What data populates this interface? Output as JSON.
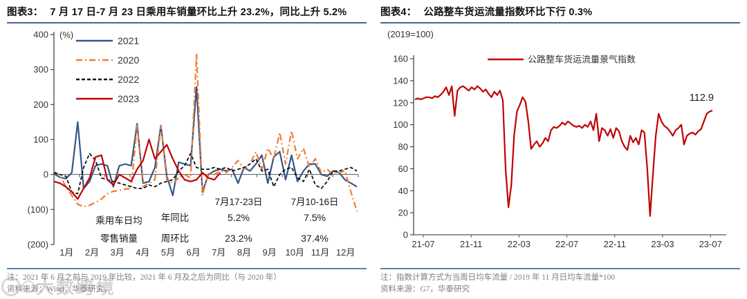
{
  "watermark": {
    "text": "大数跨境"
  },
  "panels": {
    "left": {
      "title_prefix": "图表3：",
      "title": "7 月 17 日-7 月 23 日乘用车销量环比上升 23.2%，同比上升 5.2%",
      "note1": "注：2021 年 6 月之前与 2019 年比较，2021 年 6 月及之后为同比（与 2020 年）",
      "note2": "资料来源：Wind，华泰研究。"
    },
    "right": {
      "title_prefix": "图表4：",
      "title": "公路整车货运流量指数环比下行 0.3%",
      "note1": "注：指数计算方式为当周日均车流量 / 2019 年 11 月日均车流量*100",
      "note2": "资料来源：G7，华泰研究"
    }
  },
  "chart_data": [
    {
      "type": "line",
      "title": "7 月 17 日-7 月 23 日乘用车销量环比上升 23.2%，同比上升 5.2%",
      "ylabel": "(%)",
      "ylim": [
        -200,
        400
      ],
      "yticks": [
        400,
        300,
        200,
        100,
        0,
        -100,
        -200
      ],
      "ytick_labels": [
        "400",
        "300",
        "200",
        "100",
        "0",
        "(100)",
        "(200)"
      ],
      "categories": [
        "1月",
        "2月",
        "3月",
        "4月",
        "5月",
        "6月",
        "7月",
        "8月",
        "9月",
        "10月",
        "11月",
        "12月"
      ],
      "x_unit": "week-of-year",
      "legend_position": "top-left",
      "grid": false,
      "series": [
        {
          "name": "2021",
          "color": "#34558b",
          "style": "solid",
          "values": [
            2,
            -8,
            -12,
            5,
            150,
            -40,
            -20,
            25,
            30,
            25,
            -35,
            25,
            30,
            25,
            145,
            -25,
            -20,
            20,
            140,
            -5,
            -60,
            35,
            30,
            25,
            250,
            -50,
            0,
            10,
            15,
            10,
            15,
            -25,
            20,
            10,
            30,
            55,
            -25,
            50,
            65,
            -15,
            55,
            -20,
            10,
            30,
            30,
            0,
            -5,
            10,
            5,
            -15,
            -25,
            -35
          ]
        },
        {
          "name": "2020",
          "color": "#ed7d31",
          "style": "dash-dot",
          "values": [
            8,
            -2,
            -35,
            -60,
            -85,
            -92,
            -88,
            -80,
            -70,
            -55,
            -48,
            -45,
            -42,
            -40,
            140,
            -35,
            -25,
            -15,
            138,
            -15,
            -25,
            -10,
            0,
            -10,
            345,
            -60,
            5,
            0,
            10,
            5,
            20,
            40,
            15,
            30,
            65,
            15,
            75,
            45,
            120,
            30,
            125,
            45,
            75,
            20,
            45,
            5,
            15,
            0,
            5,
            10,
            -50,
            -105
          ]
        },
        {
          "name": "2022",
          "color": "#111111",
          "style": "dashed",
          "values": [
            5,
            0,
            -5,
            -50,
            -55,
            20,
            60,
            40,
            -10,
            -15,
            -20,
            -25,
            -30,
            -35,
            -40,
            -40,
            -30,
            -35,
            -25,
            -20,
            -15,
            10,
            25,
            60,
            20,
            15,
            15,
            20,
            15,
            20,
            10,
            15,
            20,
            30,
            45,
            10,
            15,
            -35,
            0,
            15,
            20,
            -10,
            -20,
            15,
            -30,
            -40,
            -20,
            10,
            10,
            15,
            20,
            10
          ]
        },
        {
          "name": "2023",
          "color": "#c00000",
          "style": "solid",
          "values": [
            -20,
            -25,
            -35,
            -50,
            -70,
            -40,
            -10,
            50,
            55,
            -15,
            -30,
            0,
            -10,
            -20,
            15,
            40,
            100,
            45,
            65,
            85,
            45,
            10,
            -15,
            -20,
            -15,
            5,
            -10,
            -15,
            5
          ]
        }
      ],
      "annotation_table": {
        "row_label_lines": [
          "乘用车日均",
          "零售销量"
        ],
        "col_headers": [
          "7月17-23日",
          "7月10-16日"
        ],
        "rows": [
          {
            "label": "年同比",
            "values": [
              "5.2%",
              "7.5%"
            ]
          },
          {
            "label": "周环比",
            "values": [
              "23.2%",
              "37.4%"
            ]
          }
        ]
      }
    },
    {
      "type": "line",
      "title": "公路整车货运流量指数环比下行 0.3%",
      "ylabel": "(2019=100)",
      "ylim": [
        0,
        160
      ],
      "yticks": [
        160,
        140,
        120,
        100,
        80,
        60,
        40,
        20,
        0
      ],
      "x_ticks": [
        "21-07",
        "21-11",
        "22-03",
        "22-07",
        "22-11",
        "23-03",
        "23-07"
      ],
      "legend_position": "top-center",
      "grid": false,
      "end_label": "112.9",
      "series": [
        {
          "name": "公路整车货运流量景气指数",
          "color": "#c00000",
          "style": "solid",
          "values": [
            123,
            124,
            123,
            124,
            125,
            125,
            124,
            126,
            125,
            127,
            130,
            134,
            127,
            135,
            108,
            131,
            134,
            135,
            133,
            131,
            134,
            132,
            135,
            133,
            130,
            132,
            128,
            125,
            130,
            127,
            131,
            122,
            60,
            25,
            45,
            90,
            112,
            118,
            125,
            121,
            103,
            78,
            82,
            85,
            80,
            83,
            88,
            85,
            95,
            98,
            97,
            99,
            102,
            100,
            103,
            101,
            99,
            98,
            99,
            97,
            100,
            98,
            103,
            95,
            110,
            85,
            97,
            95,
            90,
            96,
            88,
            97,
            94,
            85,
            80,
            77,
            90,
            84,
            88,
            82,
            95,
            93,
            60,
            17,
            55,
            90,
            110,
            103,
            99,
            97,
            94,
            90,
            95,
            97,
            100,
            82,
            90,
            92,
            93,
            91,
            94,
            96,
            103,
            110,
            112,
            112.9
          ]
        }
      ]
    }
  ]
}
